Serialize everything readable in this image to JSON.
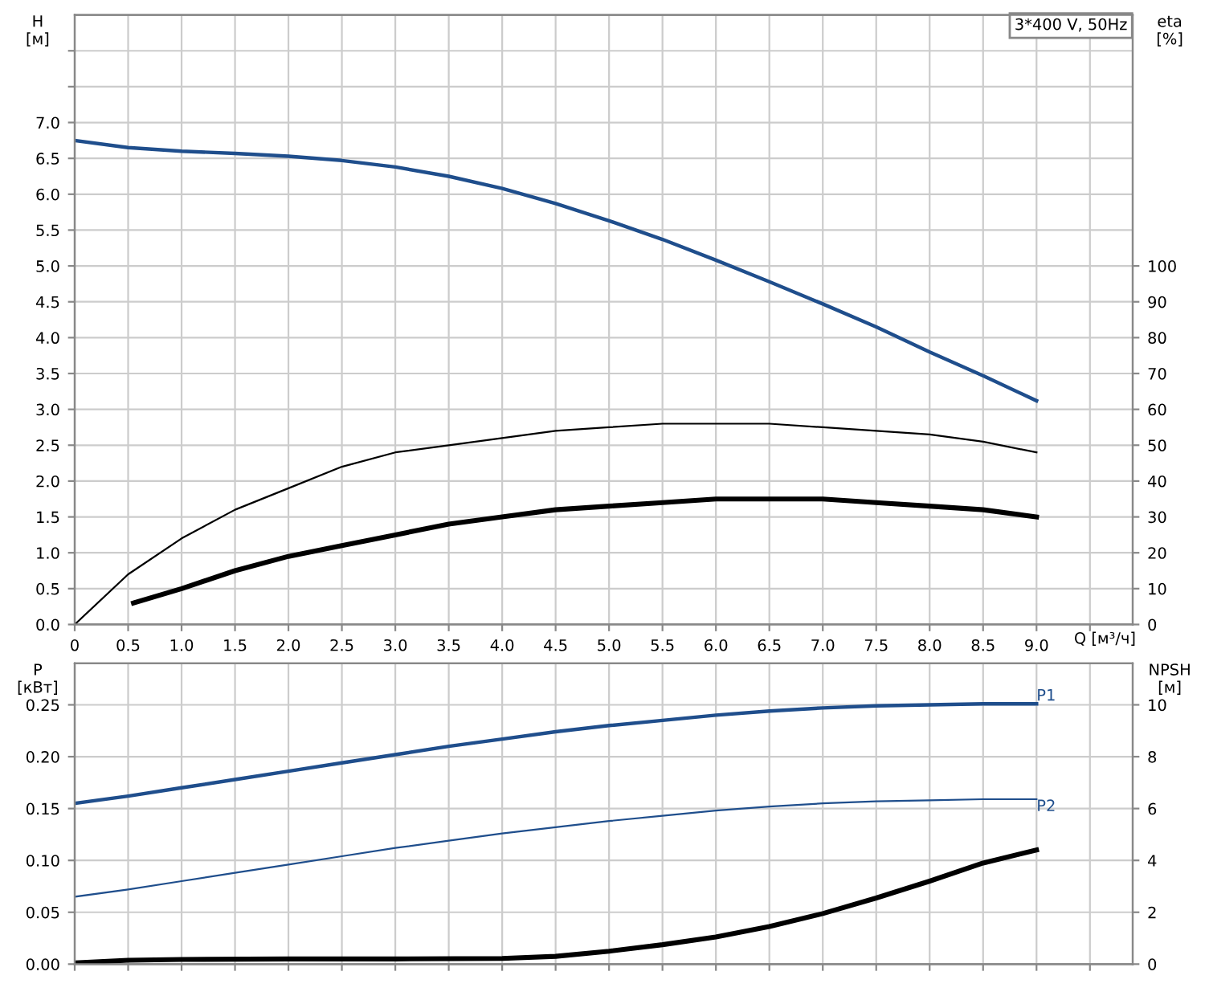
{
  "chart_data": [
    {
      "type": "line",
      "xlabel": "Q [м³/ч]",
      "ylabel": "H\n[м]",
      "y2label": "eta\n[%]",
      "annotations": [
        "3*400 V, 50Hz"
      ],
      "grid": true,
      "legend": false,
      "tick_labels": "xy",
      "xlim": [
        0,
        9.9
      ],
      "xticks": [
        0,
        {
          "value": 0.5,
          "label": "0.5"
        },
        {
          "value": 1,
          "label": "1.0"
        },
        {
          "value": 1.5,
          "label": "1.5"
        },
        {
          "value": 2,
          "label": "2.0"
        },
        {
          "value": 2.5,
          "label": "2.5"
        },
        {
          "value": 3,
          "label": "3.0"
        },
        {
          "value": 3.5,
          "label": "3.5"
        },
        {
          "value": 4,
          "label": "4.0"
        },
        {
          "value": 4.5,
          "label": "4.5"
        },
        {
          "value": 5,
          "label": "5.0"
        },
        {
          "value": 5.5,
          "label": "5.5"
        },
        {
          "value": 6,
          "label": "6.0"
        },
        {
          "value": 6.5,
          "label": "6.5"
        },
        {
          "value": 7,
          "label": "7.0"
        },
        {
          "value": 7.5,
          "label": "7.5"
        },
        {
          "value": 8,
          "label": "8.0"
        },
        {
          "value": 8.5,
          "label": "8.5"
        },
        {
          "value": 9,
          "label": "9.0"
        },
        {
          "value": 9.5,
          "label": null
        }
      ],
      "ylim": [
        0,
        8.5
      ],
      "yticks": [
        {
          "value": 0,
          "label": "0.0"
        },
        {
          "value": 0.5,
          "label": "0.5"
        },
        {
          "value": 1,
          "label": "1.0"
        },
        {
          "value": 1.5,
          "label": "1.5"
        },
        {
          "value": 2,
          "label": "2.0"
        },
        {
          "value": 2.5,
          "label": "2.5"
        },
        {
          "value": 3,
          "label": "3.0"
        },
        {
          "value": 3.5,
          "label": "3.5"
        },
        {
          "value": 4,
          "label": "4.0"
        },
        {
          "value": 4.5,
          "label": "4.5"
        },
        {
          "value": 5,
          "label": "5.0"
        },
        {
          "value": 5.5,
          "label": "5.5"
        },
        {
          "value": 6,
          "label": "6.0"
        },
        {
          "value": 6.5,
          "label": "6.5"
        },
        {
          "value": 7,
          "label": "7.0"
        },
        {
          "value": 7.5,
          "label": null
        },
        {
          "value": 8,
          "label": null
        }
      ],
      "y2lim": [
        0,
        170
      ],
      "y2ticks": [
        0,
        10,
        20,
        30,
        40,
        50,
        60,
        70,
        80,
        90,
        100
      ],
      "series": [
        {
          "color": "#1f4e8c",
          "x": [
            0,
            0.5,
            1,
            1.5,
            2,
            2.5,
            3,
            3.5,
            4,
            4.5,
            5,
            5.5,
            6,
            6.5,
            7,
            7.5,
            8,
            8.5,
            9
          ],
          "values": [
            6.75,
            6.65,
            6.6,
            6.57,
            6.53,
            6.47,
            6.38,
            6.25,
            6.08,
            5.87,
            5.63,
            5.37,
            5.08,
            4.78,
            4.47,
            4.15,
            3.8,
            3.47,
            3.12
          ]
        },
        {
          "color": "#000000",
          "axis": "y2",
          "x": [
            0,
            0.5,
            1,
            1.5,
            2,
            2.5,
            3,
            3.5,
            4,
            4.5,
            5,
            5.5,
            6,
            6.5,
            7,
            7.5,
            8,
            8.5,
            9
          ],
          "values": [
            0,
            14,
            24,
            32,
            38,
            44,
            48,
            50,
            52,
            54,
            55,
            56,
            56,
            56,
            55,
            54,
            53,
            51,
            48
          ]
        },
        {
          "color": "#000000",
          "axis": "y2",
          "x": [
            0.55,
            1,
            1.5,
            2,
            2.5,
            3,
            3.5,
            4,
            4.5,
            5,
            5.5,
            6,
            6.5,
            7,
            7.5,
            8,
            8.5,
            9
          ],
          "values": [
            6,
            10,
            15,
            19,
            22,
            25,
            28,
            30,
            32,
            33,
            34,
            35,
            35,
            35,
            34,
            33,
            32,
            30
          ]
        }
      ]
    },
    {
      "type": "line",
      "ylabel": "P\n[кВт]",
      "y2label": "NPSH\n[м]",
      "grid": true,
      "legend": false,
      "tick_labels": "y",
      "xlim": [
        0,
        9.9
      ],
      "xticks": [
        0,
        0.5,
        1,
        1.5,
        2,
        2.5,
        3,
        3.5,
        4,
        4.5,
        5,
        5.5,
        6,
        6.5,
        7,
        7.5,
        8,
        8.5,
        9,
        9.5
      ],
      "ylim": [
        0,
        0.29
      ],
      "yticks": [
        {
          "value": 0,
          "label": "0.00"
        },
        0.05,
        {
          "value": 0.1,
          "label": "0.10"
        },
        0.15,
        {
          "value": 0.2,
          "label": "0.20"
        },
        0.25
      ],
      "y2lim": [
        0,
        11.6
      ],
      "y2ticks": [
        0,
        2,
        4,
        6,
        8,
        10
      ],
      "series": [
        {
          "name": "P1",
          "color": "#1f4e8c",
          "x": [
            0,
            0.5,
            1,
            1.5,
            2,
            2.5,
            3,
            3.5,
            4,
            4.5,
            5,
            5.5,
            6,
            6.5,
            7,
            7.5,
            8,
            8.5,
            9
          ],
          "values": [
            0.155,
            0.162,
            0.17,
            0.178,
            0.186,
            0.194,
            0.202,
            0.21,
            0.217,
            0.224,
            0.23,
            0.235,
            0.24,
            0.244,
            0.247,
            0.249,
            0.25,
            0.251,
            0.251
          ]
        },
        {
          "name": "P2",
          "color": "#1f4e8c",
          "x": [
            0,
            0.5,
            1,
            1.5,
            2,
            2.5,
            3,
            3.5,
            4,
            4.5,
            5,
            5.5,
            6,
            6.5,
            7,
            7.5,
            8,
            8.5,
            9
          ],
          "values": [
            0.065,
            0.072,
            0.08,
            0.088,
            0.096,
            0.104,
            0.112,
            0.119,
            0.126,
            0.132,
            0.138,
            0.143,
            0.148,
            0.152,
            0.155,
            0.157,
            0.158,
            0.159,
            0.159
          ]
        },
        {
          "color": "#000000",
          "axis": "y2",
          "x": [
            0,
            0.5,
            1,
            2,
            3,
            4,
            4.5,
            5,
            5.5,
            6,
            6.5,
            7,
            7.5,
            8,
            8.5,
            9
          ],
          "values": [
            0.05,
            0.15,
            0.18,
            0.2,
            0.2,
            0.22,
            0.3,
            0.5,
            0.75,
            1.05,
            1.45,
            1.95,
            2.55,
            3.2,
            3.9,
            4.4
          ]
        }
      ]
    }
  ]
}
